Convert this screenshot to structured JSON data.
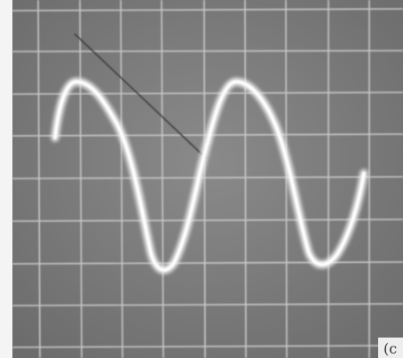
{
  "label": "(c"
}
